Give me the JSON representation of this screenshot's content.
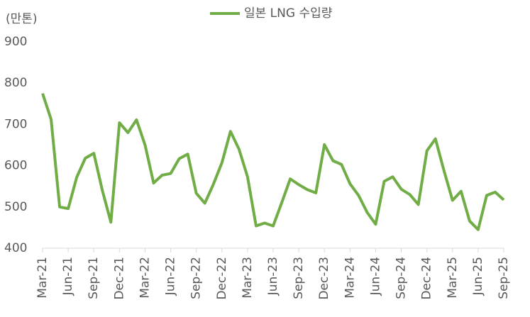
{
  "chart_data": {
    "type": "line",
    "y_axis_label": "(만톤)",
    "categories": [
      "Mar-21",
      null,
      null,
      "Jun-21",
      null,
      null,
      "Sep-21",
      null,
      null,
      "Dec-21",
      null,
      null,
      "Mar-22",
      null,
      null,
      "Jun-22",
      null,
      null,
      "Sep-22",
      null,
      null,
      "Dec-22",
      null,
      null,
      "Mar-23",
      null,
      null,
      "Jun-23",
      null,
      null,
      "Sep-23",
      null,
      null,
      "Dec-23",
      null,
      null,
      "Mar-24",
      null,
      null,
      "Jun-24",
      null,
      null,
      "Sep-24",
      null,
      null,
      "Dec-24",
      null,
      null,
      "Mar-25",
      null,
      null,
      "Jun-25",
      null,
      null,
      "Sep-25"
    ],
    "series": [
      {
        "name": "일본 LNG 수입량",
        "color": "#70ad47",
        "values": [
          775,
          712,
          500,
          496,
          572,
          618,
          630,
          540,
          463,
          704,
          680,
          711,
          650,
          558,
          577,
          581,
          617,
          628,
          533,
          509,
          555,
          607,
          683,
          640,
          573,
          454,
          461,
          454,
          510,
          568,
          554,
          542,
          534,
          651,
          612,
          603,
          556,
          528,
          487,
          458,
          562,
          573,
          543,
          530,
          506,
          636,
          665,
          588,
          516,
          538,
          466,
          445,
          528,
          536,
          517
        ]
      }
    ],
    "ylim": [
      400,
      900
    ],
    "yticks": [
      400,
      500,
      600,
      700,
      800,
      900
    ],
    "grid": false,
    "legend": "top"
  }
}
